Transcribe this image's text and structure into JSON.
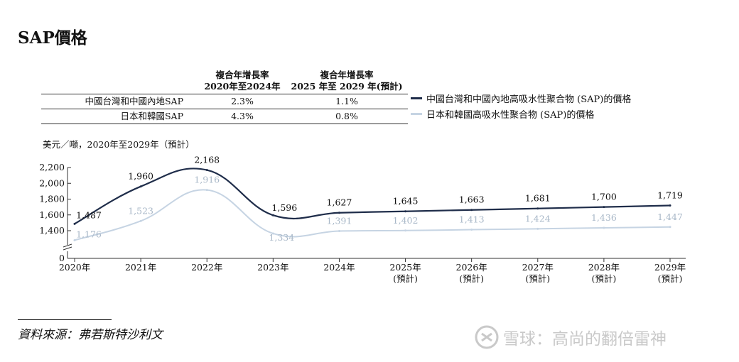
{
  "title": "SAP價格",
  "cagr_table": {
    "headers": [
      "",
      "複合年增長率\n2020年至2024年",
      "複合年增長率\n2025 年至 2029 年(預計)"
    ],
    "rows": [
      {
        "label": "中國台灣和中國內地SAP",
        "cagr_2020_2024": "2.3%",
        "cagr_2025_2029": "1.1%"
      },
      {
        "label": "日本和韓國SAP",
        "cagr_2020_2024": "4.3%",
        "cagr_2025_2029": "0.8%"
      }
    ]
  },
  "source": "資料來源：弗若斯特沙利文",
  "watermark": "雪球：高尚的翻倍雷神",
  "colors": {
    "series1": "#1f2d4a",
    "series2": "#c6d4e3",
    "label2": "#a9b8c8"
  },
  "chart_data": {
    "type": "line",
    "unit_label": "美元／噸，2020年至2029年（預計）",
    "categories": [
      "2020年",
      "2021年",
      "2022年",
      "2023年",
      "2024年",
      "2025年\n(預計)",
      "2026年\n(預計)",
      "2027年\n(預計)",
      "2028年\n(預計)",
      "2029年\n(預計)"
    ],
    "y_ticks": [
      "0",
      "1,400",
      "1,600",
      "1,800",
      "2,000",
      "2,200"
    ],
    "axis_break": true,
    "ylim": [
      1200,
      2200
    ],
    "legend_position": "right, above plot",
    "grid": false,
    "series": [
      {
        "name": "中國台灣和中國內地高吸水性聚合物 (SAP)的價格",
        "values": [
          1487,
          1960,
          2168,
          1596,
          1627,
          1645,
          1663,
          1681,
          1700,
          1719
        ],
        "labels": [
          "1,487",
          "1,960",
          "2,168",
          "1,596",
          "1,627",
          "1,645",
          "1,663",
          "1,681",
          "1,700",
          "1,719"
        ]
      },
      {
        "name": "日本和韓國高吸水性聚合物 (SAP)的價格",
        "values": [
          1176,
          1523,
          1916,
          1334,
          1391,
          1402,
          1413,
          1424,
          1436,
          1447
        ],
        "labels": [
          "1,176",
          "1,523",
          "1,916",
          "1,334",
          "1,391",
          "1,402",
          "1,413",
          "1,424",
          "1,436",
          "1,447"
        ]
      }
    ]
  }
}
